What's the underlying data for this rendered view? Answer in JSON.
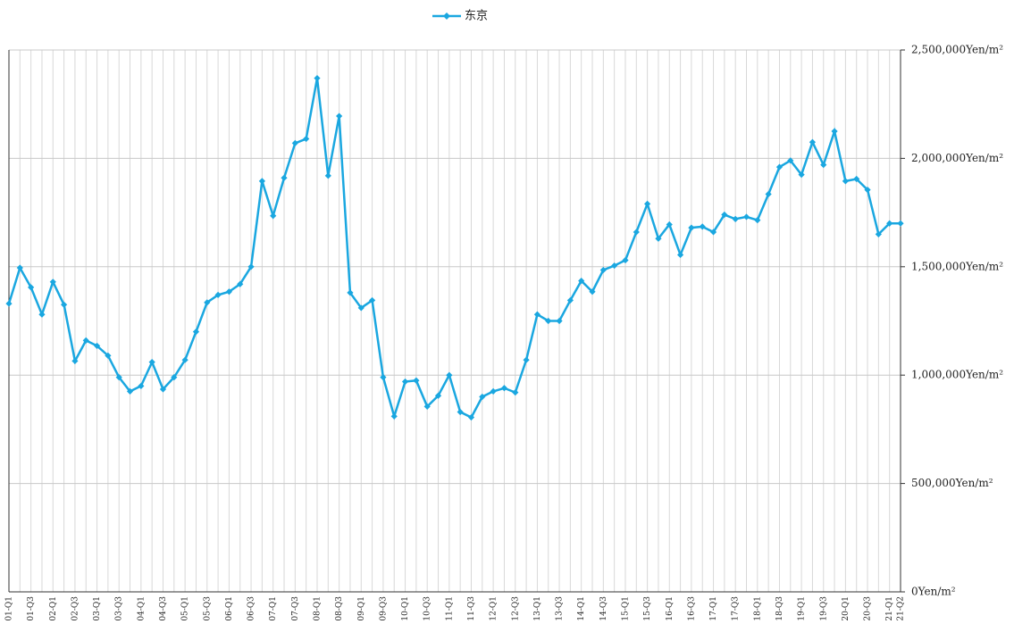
{
  "chart_data": {
    "type": "line",
    "categories": [
      "01-Q1",
      null,
      "01-Q3",
      null,
      "02-Q1",
      null,
      "02-Q3",
      null,
      "03-Q1",
      null,
      "03-Q3",
      null,
      "04-Q1",
      null,
      "04-Q3",
      null,
      "05-Q1",
      null,
      "05-Q3",
      null,
      "06-Q1",
      null,
      "06-Q3",
      null,
      "07-Q1",
      null,
      "07-Q3",
      null,
      "08-Q1",
      null,
      "08-Q3",
      null,
      "09-Q1",
      null,
      "09-Q3",
      null,
      "10-Q1",
      null,
      "10-Q3",
      null,
      "11-Q1",
      null,
      "11-Q3",
      null,
      "12-Q1",
      null,
      "12-Q3",
      null,
      "13-Q1",
      null,
      "13-Q3",
      null,
      "14-Q1",
      null,
      "14-Q3",
      null,
      "15-Q1",
      null,
      "15-Q3",
      null,
      "16-Q1",
      null,
      "16-Q3",
      null,
      "17-Q1",
      null,
      "17-Q3",
      null,
      "18-Q1",
      null,
      "18-Q3",
      null,
      "19-Q1",
      null,
      "19-Q3",
      null,
      "20-Q1",
      null,
      "20-Q3",
      null,
      "21-Q1",
      "21-Q2"
    ],
    "series": [
      {
        "name": "东京",
        "color": "#1aa7e0",
        "values": [
          1330000,
          1495000,
          1405000,
          1280000,
          1430000,
          1325000,
          1065000,
          1160000,
          1135000,
          1090000,
          990000,
          925000,
          950000,
          1060000,
          935000,
          990000,
          1070000,
          1200000,
          1335000,
          1370000,
          1385000,
          1420000,
          1500000,
          1895000,
          1735000,
          1910000,
          2070000,
          2090000,
          2370000,
          1920000,
          2195000,
          1380000,
          1310000,
          1345000,
          990000,
          810000,
          970000,
          975000,
          855000,
          905000,
          1000000,
          830000,
          805000,
          900000,
          925000,
          940000,
          920000,
          1070000,
          1280000,
          1250000,
          1250000,
          1345000,
          1435000,
          1385000,
          1485000,
          1505000,
          1530000,
          1660000,
          1790000,
          1630000,
          1695000,
          1555000,
          1680000,
          1685000,
          1660000,
          1740000,
          1720000,
          1730000,
          1715000,
          1835000,
          1960000,
          1990000,
          1925000,
          2075000,
          1970000,
          2125000,
          1895000,
          1905000,
          1855000,
          1650000,
          1700000,
          1700000
        ]
      }
    ],
    "ylim": [
      0,
      2500000
    ],
    "yticks": [
      {
        "value": 0,
        "label": "0Yen/m²"
      },
      {
        "value": 500000,
        "label": "500,000Yen/m²"
      },
      {
        "value": 1000000,
        "label": "1,000,000Yen/m²"
      },
      {
        "value": 1500000,
        "label": "1,500,000Yen/m²"
      },
      {
        "value": 2000000,
        "label": "2,000,000Yen/m²"
      },
      {
        "value": 2500000,
        "label": "2,500,000Yen/m²"
      }
    ],
    "grid": true,
    "legend": "top"
  }
}
